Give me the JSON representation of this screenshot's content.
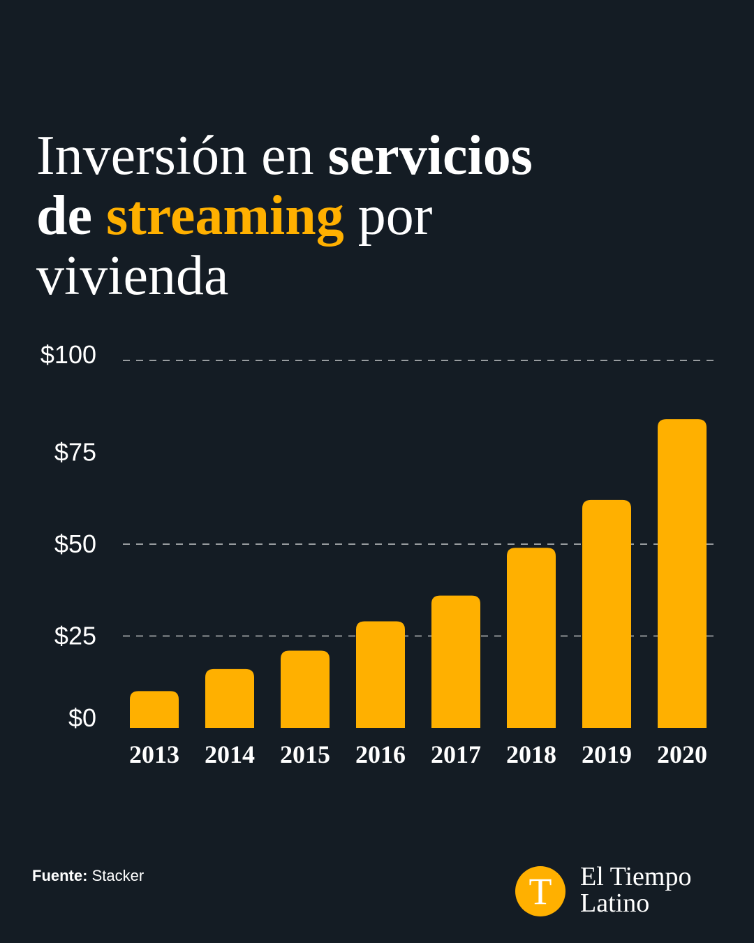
{
  "title": {
    "part1": "Inversión en ",
    "part2": "servicios",
    "part3": "de ",
    "part4": "streaming",
    "part5": " por",
    "part6": "vivienda"
  },
  "chart_data": {
    "type": "bar",
    "title": "Inversión en servicios de streaming por vivienda",
    "categories": [
      "2013",
      "2014",
      "2015",
      "2016",
      "2017",
      "2018",
      "2019",
      "2020"
    ],
    "values": [
      10,
      16,
      21,
      29,
      36,
      49,
      62,
      84
    ],
    "ylim": [
      0,
      100
    ],
    "yticks": [
      0,
      25,
      50,
      75,
      100
    ],
    "ytick_labels": [
      "$0",
      "$25",
      "$50",
      "$75",
      "$100"
    ],
    "gridlines": [
      25,
      50,
      100
    ],
    "xlabel": "",
    "ylabel": "",
    "bar_color": "#ffb000"
  },
  "footer": {
    "source_label": "Fuente:",
    "source_value": " Stacker"
  },
  "brand": {
    "logo_letter": "T",
    "line1": "El Tiempo",
    "line2": "Latino"
  },
  "colors": {
    "background": "#141c24",
    "accent": "#ffb000",
    "text": "#ffffff"
  }
}
